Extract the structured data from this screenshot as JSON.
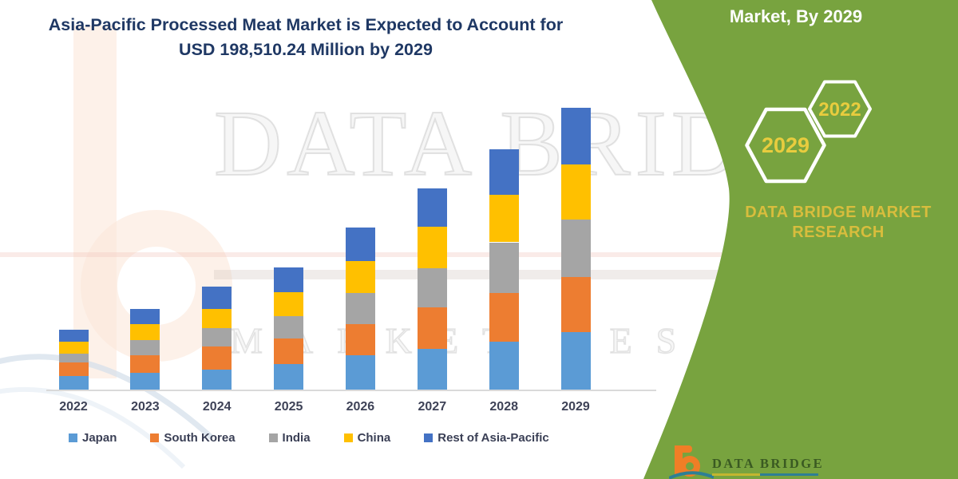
{
  "title": {
    "line1": "Asia-Pacific Processed Meat Market is Expected to Account for",
    "line2": "USD 198,510.24 Million by 2029"
  },
  "chart_data": {
    "type": "bar",
    "subtype": "stacked-vertical",
    "title": "Asia-Pacific Processed Meat Market is Expected to Account for USD 198,510.24 Million by 2029",
    "unit": "USD Million",
    "categories": [
      "2022",
      "2023",
      "2024",
      "2025",
      "2026",
      "2027",
      "2028",
      "2029"
    ],
    "series": [
      {
        "name": "Japan",
        "color": "#5B9BD5",
        "values": [
          9720,
          11580,
          14220,
          17980,
          24160,
          28830,
          33550,
          40450
        ]
      },
      {
        "name": "South Korea",
        "color": "#ED7D31",
        "values": [
          9550,
          12760,
          16130,
          17980,
          21910,
          29050,
          34610,
          38940
        ]
      },
      {
        "name": "India",
        "color": "#A5A5A5",
        "values": [
          6350,
          10280,
          12920,
          15730,
          21750,
          27530,
          35620,
          40290
        ]
      },
      {
        "name": "China",
        "color": "#FFC000",
        "values": [
          8430,
          11630,
          13650,
          16860,
          22810,
          29220,
          33320,
          38770
        ]
      },
      {
        "name": "Rest of Asia-Pacific",
        "color": "#4472C4",
        "values": [
          8430,
          10840,
          15400,
          17420,
          23430,
          27140,
          32200,
          40060
        ]
      }
    ],
    "total_2029": 198510.24,
    "xlabel": "",
    "ylabel": "",
    "ylim": [
      0,
      198510.24
    ],
    "y_axis_visible": false,
    "grid": false,
    "legend_position": "bottom"
  },
  "side_panel": {
    "heading": "Market, By 2029",
    "hexagon_large_year": "2029",
    "hexagon_small_year": "2022",
    "brand_line1": "DATA BRIDGE MARKET",
    "brand_line2": "RESEARCH"
  },
  "watermark": {
    "text_line1": "DATA BRIDGE",
    "text_line2": "MARKET RESEARCH"
  },
  "footer": {
    "logo_text": "DATA BRIDGE"
  },
  "colors": {
    "panel_green": "#78A33F",
    "title_navy": "#1F3864",
    "hex_year_gold": "#E8CC3E",
    "brand_gold": "#D8BD3D",
    "axis_line": "#D9D9D9",
    "footer_logo_orange": "#F07E26",
    "footer_logo_teal": "#2E7F95"
  }
}
